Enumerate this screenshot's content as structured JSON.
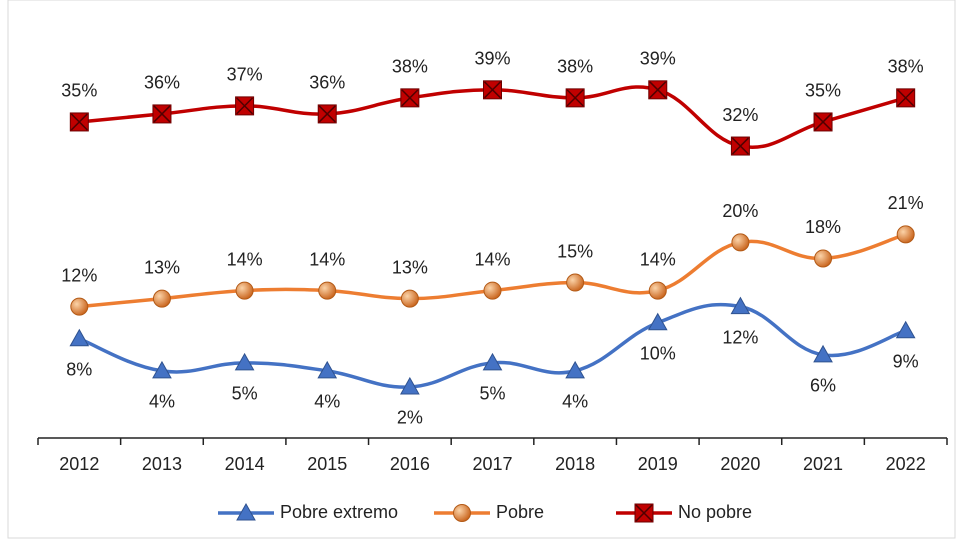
{
  "chart_data": {
    "type": "line",
    "categories": [
      "2012",
      "2013",
      "2014",
      "2015",
      "2016",
      "2017",
      "2018",
      "2019",
      "2020",
      "2021",
      "2022"
    ],
    "series": [
      {
        "name": "Pobre extremo",
        "color": "#4472c4",
        "marker": "triangle",
        "values": [
          8,
          4,
          5,
          4,
          2,
          5,
          4,
          10,
          12,
          6,
          9
        ],
        "value_labels": [
          "8%",
          "4%",
          "5%",
          "4%",
          "2%",
          "5%",
          "4%",
          "10%",
          "12%",
          "6%",
          "9%"
        ]
      },
      {
        "name": "Pobre",
        "color": "#ed7d31",
        "marker": "circle",
        "values": [
          12,
          13,
          14,
          14,
          13,
          14,
          15,
          14,
          20,
          18,
          21
        ],
        "value_labels": [
          "12%",
          "13%",
          "14%",
          "14%",
          "13%",
          "14%",
          "15%",
          "14%",
          "20%",
          "18%",
          "21%"
        ]
      },
      {
        "name": "No pobre",
        "color": "#c00000",
        "marker": "square",
        "values": [
          35,
          36,
          37,
          36,
          38,
          39,
          38,
          39,
          32,
          35,
          38
        ],
        "value_labels": [
          "35%",
          "36%",
          "37%",
          "36%",
          "38%",
          "39%",
          "38%",
          "39%",
          "32%",
          "35%",
          "38%"
        ]
      }
    ],
    "legend": "bottom"
  }
}
